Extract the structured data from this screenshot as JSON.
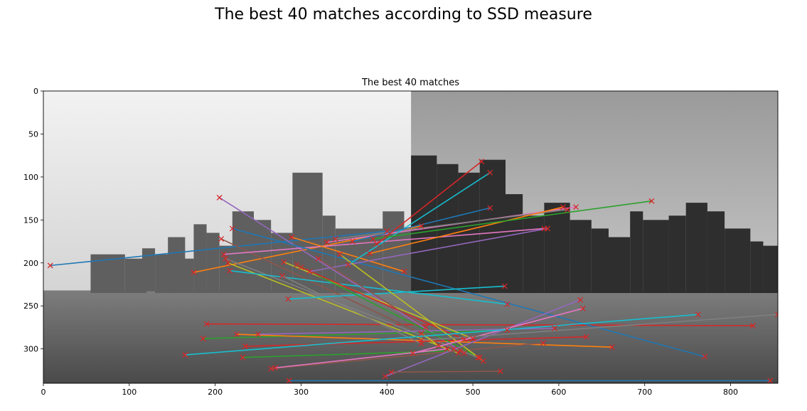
{
  "figure": {
    "suptitle": "The best 40 matches according to SSD measure"
  },
  "chart_data": {
    "type": "image",
    "title": "The best 40 matches",
    "xlabel": "",
    "ylabel": "",
    "xlim": [
      0,
      855
    ],
    "ylim": [
      340,
      0
    ],
    "image_width": 855,
    "image_height": 340,
    "seam_x": 428,
    "grid": false,
    "xticks": [
      0,
      100,
      200,
      300,
      400,
      500,
      600,
      700,
      800
    ],
    "yticks": [
      0,
      50,
      100,
      150,
      200,
      250,
      300
    ],
    "marker": "x",
    "marker_color": "#d62728",
    "colors": [
      "#1f77b4",
      "#ff7f0e",
      "#2ca02c",
      "#d62728",
      "#9467bd",
      "#8c564b",
      "#e377c2",
      "#7f7f7f",
      "#bcbd22",
      "#17becf"
    ],
    "matches": [
      {
        "x1": 8,
        "y1": 203,
        "x2": 400,
        "y2": 163
      },
      {
        "x1": 175,
        "y1": 211,
        "x2": 440,
        "y2": 157
      },
      {
        "x1": 186,
        "y1": 288,
        "x2": 540,
        "y2": 278
      },
      {
        "x1": 190,
        "y1": 271,
        "x2": 826,
        "y2": 273
      },
      {
        "x1": 205,
        "y1": 124,
        "x2": 490,
        "y2": 305
      },
      {
        "x1": 207,
        "y1": 172,
        "x2": 478,
        "y2": 300
      },
      {
        "x1": 210,
        "y1": 190,
        "x2": 583,
        "y2": 160
      },
      {
        "x1": 212,
        "y1": 195,
        "x2": 506,
        "y2": 310
      },
      {
        "x1": 215,
        "y1": 200,
        "x2": 483,
        "y2": 305
      },
      {
        "x1": 217,
        "y1": 209,
        "x2": 540,
        "y2": 248
      },
      {
        "x1": 220,
        "y1": 160,
        "x2": 770,
        "y2": 309
      },
      {
        "x1": 225,
        "y1": 283,
        "x2": 662,
        "y2": 298
      },
      {
        "x1": 232,
        "y1": 310,
        "x2": 485,
        "y2": 302
      },
      {
        "x1": 235,
        "y1": 297,
        "x2": 632,
        "y2": 286
      },
      {
        "x1": 250,
        "y1": 283,
        "x2": 595,
        "y2": 276
      },
      {
        "x1": 265,
        "y1": 323,
        "x2": 582,
        "y2": 293
      },
      {
        "x1": 270,
        "y1": 322,
        "x2": 470,
        "y2": 300
      },
      {
        "x1": 278,
        "y1": 215,
        "x2": 440,
        "y2": 294
      },
      {
        "x1": 280,
        "y1": 199,
        "x2": 500,
        "y2": 288
      },
      {
        "x1": 285,
        "y1": 242,
        "x2": 537,
        "y2": 227
      },
      {
        "x1": 286,
        "y1": 337,
        "x2": 846,
        "y2": 337
      },
      {
        "x1": 289,
        "y1": 170,
        "x2": 420,
        "y2": 210
      },
      {
        "x1": 295,
        "y1": 202,
        "x2": 508,
        "y2": 310
      },
      {
        "x1": 300,
        "y1": 205,
        "x2": 490,
        "y2": 289
      },
      {
        "x1": 310,
        "y1": 210,
        "x2": 587,
        "y2": 160
      },
      {
        "x1": 320,
        "y1": 195,
        "x2": 445,
        "y2": 275
      },
      {
        "x1": 330,
        "y1": 176,
        "x2": 620,
        "y2": 135
      },
      {
        "x1": 340,
        "y1": 172,
        "x2": 610,
        "y2": 138
      },
      {
        "x1": 345,
        "y1": 190,
        "x2": 512,
        "y2": 314
      },
      {
        "x1": 355,
        "y1": 202,
        "x2": 520,
        "y2": 95
      },
      {
        "x1": 360,
        "y1": 175,
        "x2": 520,
        "y2": 136
      },
      {
        "x1": 380,
        "y1": 189,
        "x2": 605,
        "y2": 135
      },
      {
        "x1": 384,
        "y1": 172,
        "x2": 708,
        "y2": 128
      },
      {
        "x1": 388,
        "y1": 178,
        "x2": 510,
        "y2": 82
      },
      {
        "x1": 398,
        "y1": 332,
        "x2": 625,
        "y2": 243
      },
      {
        "x1": 405,
        "y1": 327,
        "x2": 532,
        "y2": 326
      },
      {
        "x1": 430,
        "y1": 305,
        "x2": 628,
        "y2": 253
      },
      {
        "x1": 440,
        "y1": 290,
        "x2": 855,
        "y2": 260
      },
      {
        "x1": 460,
        "y1": 296,
        "x2": 440,
        "y2": 282
      },
      {
        "x1": 165,
        "y1": 307,
        "x2": 762,
        "y2": 260
      }
    ]
  }
}
